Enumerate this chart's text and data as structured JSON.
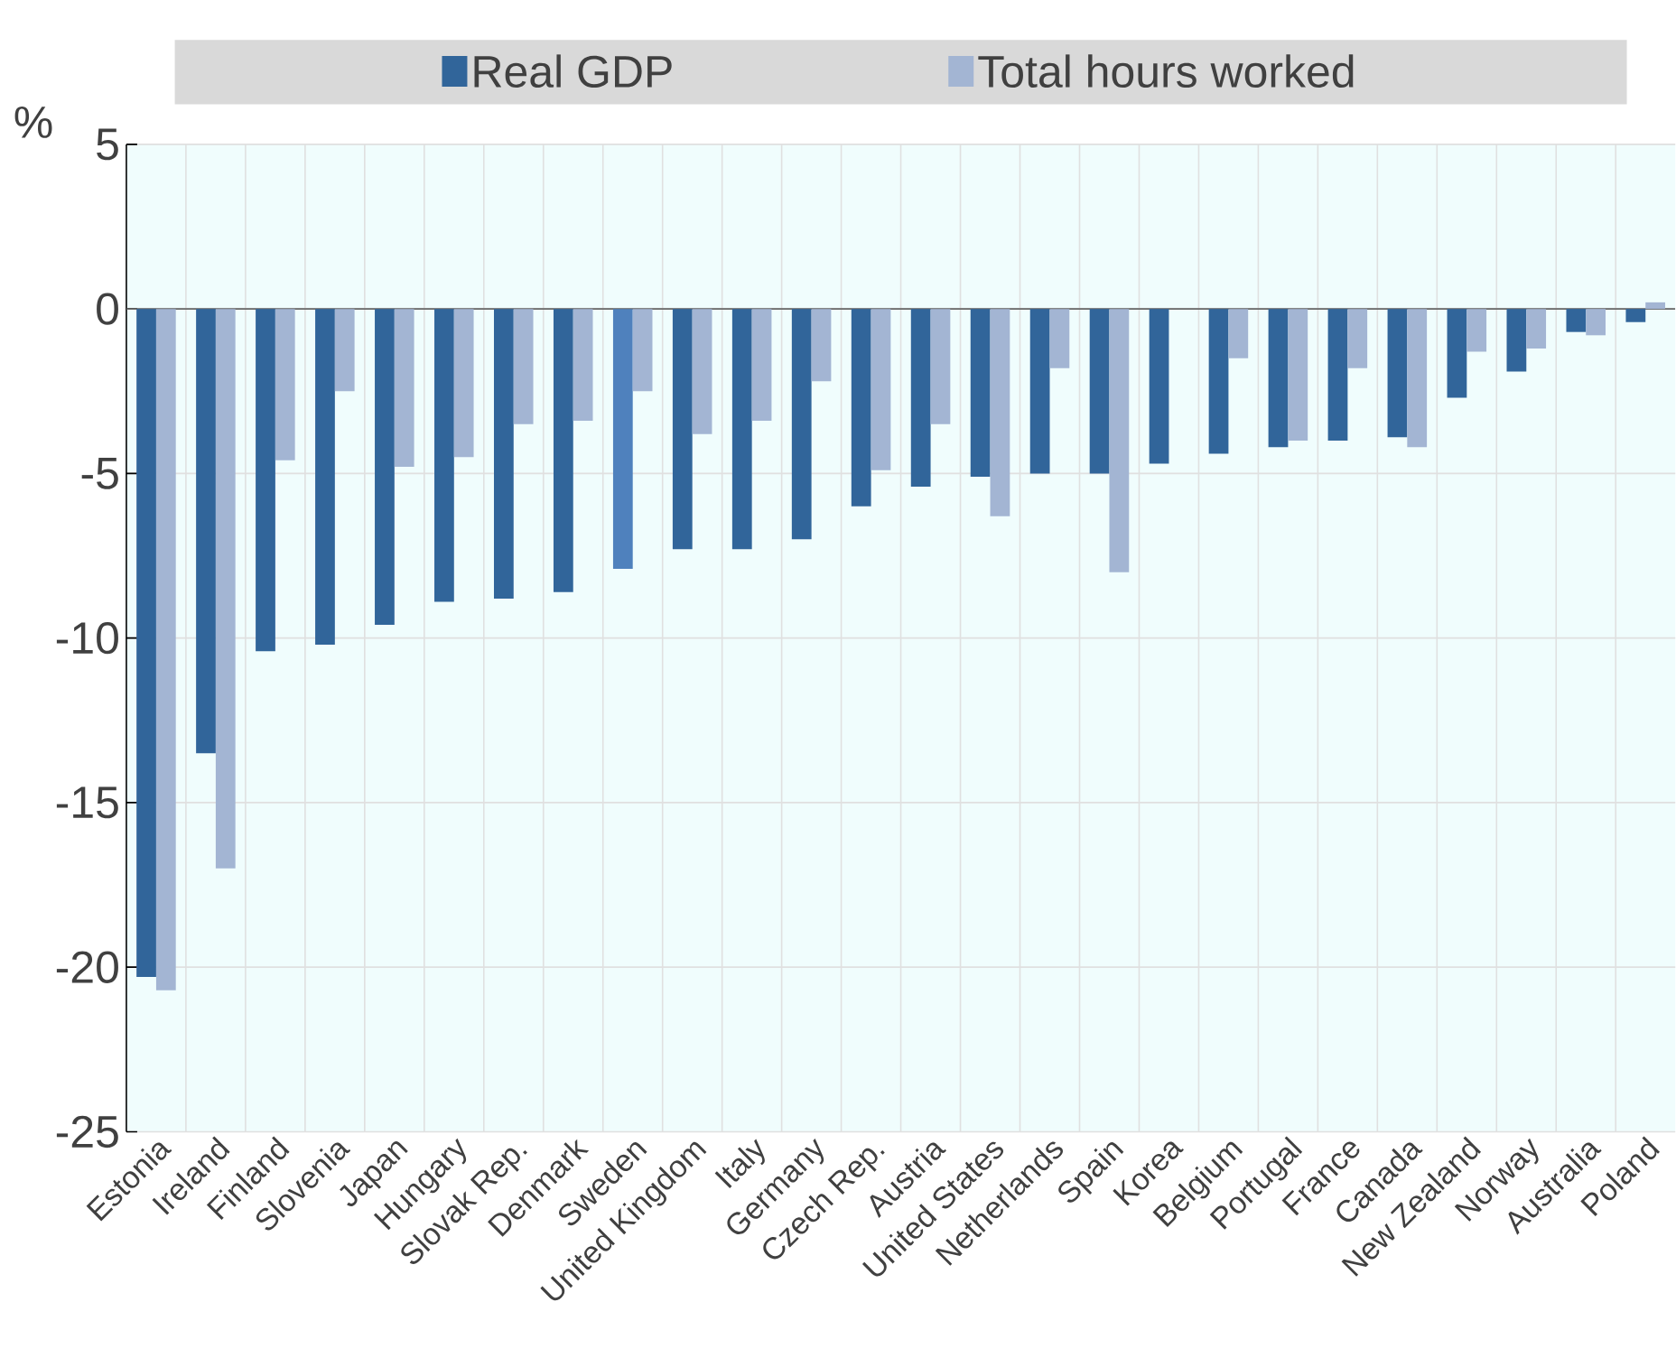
{
  "chart_data": {
    "type": "bar",
    "ylabel": "%",
    "categories": [
      "Estonia",
      "Ireland",
      "Finland",
      "Slovenia",
      "Japan",
      "Hungary",
      "Slovak Rep.",
      "Denmark",
      "Sweden",
      "United Kingdom",
      "Italy",
      "Germany",
      "Czech Rep.",
      "Austria",
      "United States",
      "Netherlands",
      "Spain",
      "Korea",
      "Belgium",
      "Portugal",
      "France",
      "Canada",
      "New Zealand",
      "Norway",
      "Australia",
      "Poland"
    ],
    "series": [
      {
        "name": "Real GDP",
        "color": "#31659a",
        "colors": [
          "#31659a",
          "#31659a",
          "#31659a",
          "#31659a",
          "#31659a",
          "#31659a",
          "#31659a",
          "#31659a",
          "#4f81bd",
          "#31659a",
          "#31659a",
          "#31659a",
          "#31659a",
          "#31659a",
          "#31659a",
          "#31659a",
          "#31659a",
          "#31659a",
          "#31659a",
          "#31659a",
          "#31659a",
          "#31659a",
          "#31659a",
          "#31659a",
          "#31659a",
          "#31659a"
        ],
        "values": [
          -20.3,
          -13.5,
          -10.4,
          -10.2,
          -9.6,
          -8.9,
          -8.8,
          -8.6,
          -7.9,
          -7.3,
          -7.3,
          -7.0,
          -6.0,
          -5.4,
          -5.1,
          -5.0,
          -5.0,
          -4.7,
          -4.4,
          -4.2,
          -4.0,
          -3.9,
          -2.7,
          -1.9,
          -0.7,
          -0.4
        ]
      },
      {
        "name": "Total hours worked",
        "color": "#a3b5d3",
        "values": [
          -20.7,
          -17.0,
          -4.6,
          -2.5,
          -4.8,
          -4.5,
          -3.5,
          -3.4,
          -2.5,
          -3.8,
          -3.4,
          -2.2,
          -4.9,
          -3.5,
          -6.3,
          -1.8,
          -8.0,
          null,
          -1.5,
          -4.0,
          -1.8,
          -4.2,
          -1.3,
          -1.2,
          -0.8,
          0.2
        ]
      }
    ],
    "ylim": [
      -25,
      5
    ],
    "yticks": [
      -25,
      -20,
      -15,
      -10,
      -5,
      0,
      5
    ],
    "grid": true,
    "legend": "top"
  }
}
